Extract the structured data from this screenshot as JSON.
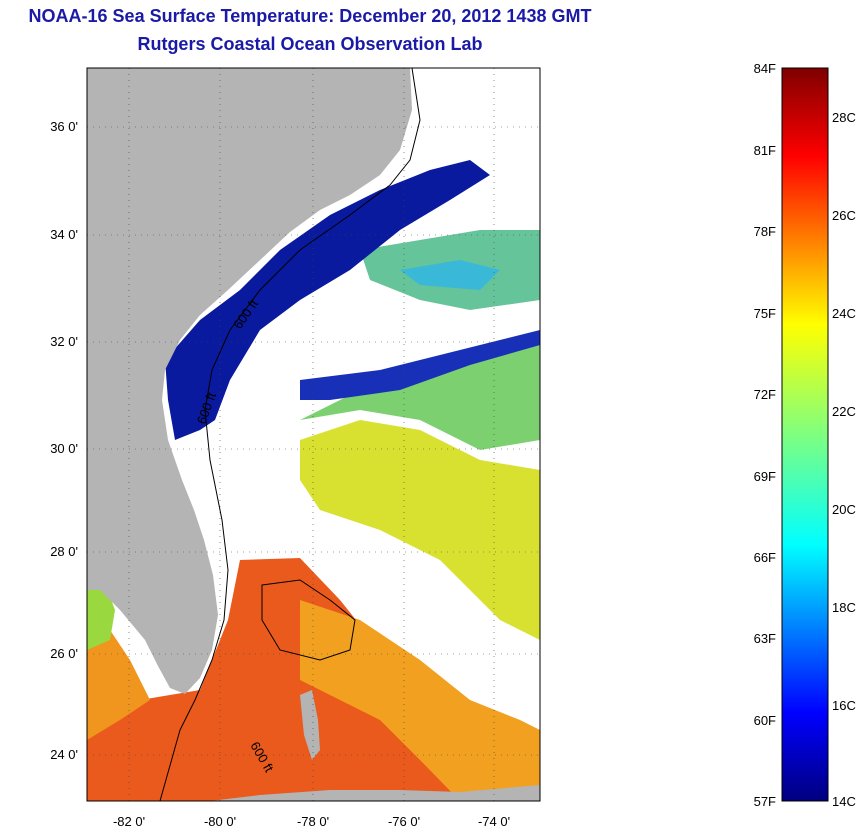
{
  "header": {
    "title": "NOAA-16 Sea Surface Temperature:  December 20, 2012 1438 GMT",
    "subtitle": "Rutgers Coastal Ocean Observation Lab"
  },
  "map": {
    "lat_labels": [
      "36 0'",
      "34 0'",
      "32 0'",
      "30 0'",
      "28 0'",
      "26 0'",
      "24 0'"
    ],
    "lon_labels": [
      "-82 0'",
      "-80 0'",
      "-78 0'",
      "-76 0'",
      "-74 0'"
    ],
    "contour_labels": [
      "600 ft",
      "600 ft",
      "600 ft"
    ],
    "colors": {
      "land": "#b4b4b4",
      "cloud": "#ffffff",
      "cold": "#0a1a9e",
      "warm": "#e8401e"
    }
  },
  "colorbar": {
    "f_labels": [
      "84F",
      "81F",
      "78F",
      "75F",
      "72F",
      "69F",
      "66F",
      "63F",
      "60F",
      "57F"
    ],
    "c_labels": [
      "28C",
      "26C",
      "24C",
      "22C",
      "20C",
      "18C",
      "16C",
      "14C"
    ],
    "colormap": "jet"
  }
}
